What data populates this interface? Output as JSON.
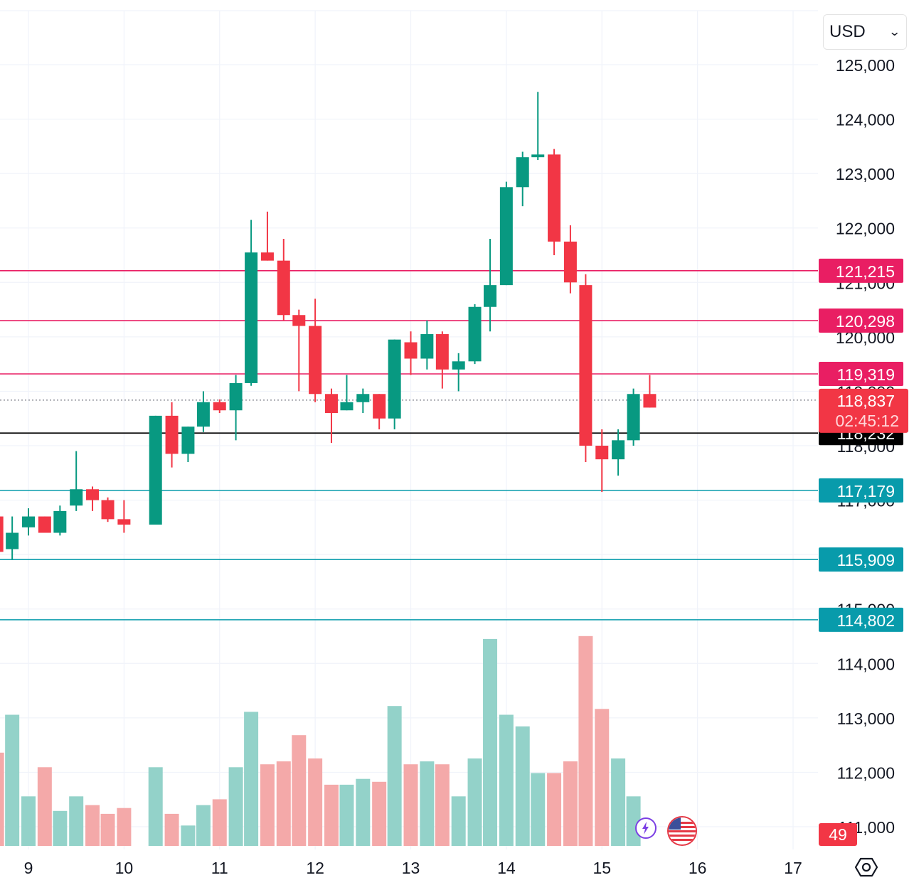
{
  "currency_select": {
    "value": "USD"
  },
  "chart_data": {
    "type": "candlestick",
    "interval": "12h",
    "x_ticks": [
      "9",
      "10",
      "11",
      "12",
      "13",
      "14",
      "15",
      "16",
      "17"
    ],
    "y_ticks": [
      "125,000",
      "124,000",
      "123,000",
      "122,000",
      "121,000",
      "120,000",
      "119,000",
      "118,000",
      "117,000",
      "116,000",
      "115,000",
      "114,000",
      "113,000",
      "112,000",
      "111,000"
    ],
    "ylim": [
      110700,
      126000
    ],
    "candles": [
      {
        "day": 8.5,
        "o": 116900,
        "h": 117000,
        "l": 116300,
        "c": 116950
      },
      {
        "day": 8.67,
        "o": 116700,
        "h": 117150,
        "l": 115900,
        "c": 116050
      },
      {
        "day": 8.83,
        "o": 116100,
        "h": 116700,
        "l": 115900,
        "c": 116400
      },
      {
        "day": 9.0,
        "o": 116500,
        "h": 116850,
        "l": 116350,
        "c": 116700
      },
      {
        "day": 9.17,
        "o": 116700,
        "h": 116700,
        "l": 116400,
        "c": 116400
      },
      {
        "day": 9.33,
        "o": 116400,
        "h": 116900,
        "l": 116350,
        "c": 116800
      },
      {
        "day": 9.5,
        "o": 116900,
        "h": 117900,
        "l": 116800,
        "c": 117200
      },
      {
        "day": 9.67,
        "o": 117200,
        "h": 117250,
        "l": 116800,
        "c": 117000
      },
      {
        "day": 9.83,
        "o": 117000,
        "h": 117050,
        "l": 116600,
        "c": 116650
      },
      {
        "day": 10.0,
        "o": 116650,
        "h": 117000,
        "l": 116400,
        "c": 116550
      },
      {
        "day": 10.33,
        "o": 116550,
        "h": 118550,
        "l": 116550,
        "c": 118550
      },
      {
        "day": 10.5,
        "o": 118550,
        "h": 118800,
        "l": 117600,
        "c": 117850
      },
      {
        "day": 10.67,
        "o": 117850,
        "h": 118350,
        "l": 117700,
        "c": 118350
      },
      {
        "day": 10.83,
        "o": 118350,
        "h": 119000,
        "l": 118250,
        "c": 118800
      },
      {
        "day": 11.0,
        "o": 118800,
        "h": 118850,
        "l": 118600,
        "c": 118650
      },
      {
        "day": 11.17,
        "o": 118650,
        "h": 119300,
        "l": 118100,
        "c": 119150
      },
      {
        "day": 11.33,
        "o": 119150,
        "h": 122150,
        "l": 119100,
        "c": 121550
      },
      {
        "day": 11.5,
        "o": 121550,
        "h": 122300,
        "l": 121400,
        "c": 121400
      },
      {
        "day": 11.67,
        "o": 121400,
        "h": 121800,
        "l": 120300,
        "c": 120400
      },
      {
        "day": 11.83,
        "o": 120400,
        "h": 120500,
        "l": 119000,
        "c": 120200
      },
      {
        "day": 12.0,
        "o": 120200,
        "h": 120700,
        "l": 118800,
        "c": 118950
      },
      {
        "day": 12.17,
        "o": 118950,
        "h": 119050,
        "l": 118050,
        "c": 118600
      },
      {
        "day": 12.33,
        "o": 118650,
        "h": 119300,
        "l": 118650,
        "c": 118800
      },
      {
        "day": 12.5,
        "o": 118800,
        "h": 119050,
        "l": 118600,
        "c": 118950
      },
      {
        "day": 12.67,
        "o": 118950,
        "h": 118950,
        "l": 118300,
        "c": 118500
      },
      {
        "day": 12.83,
        "o": 118500,
        "h": 119950,
        "l": 118300,
        "c": 119950
      },
      {
        "day": 13.0,
        "o": 119900,
        "h": 120100,
        "l": 119300,
        "c": 119600
      },
      {
        "day": 13.17,
        "o": 119600,
        "h": 120300,
        "l": 119400,
        "c": 120050
      },
      {
        "day": 13.33,
        "o": 120050,
        "h": 120100,
        "l": 119050,
        "c": 119400
      },
      {
        "day": 13.5,
        "o": 119400,
        "h": 119700,
        "l": 119000,
        "c": 119550
      },
      {
        "day": 13.67,
        "o": 119550,
        "h": 120600,
        "l": 119500,
        "c": 120550
      },
      {
        "day": 13.83,
        "o": 120550,
        "h": 121800,
        "l": 120100,
        "c": 120950
      },
      {
        "day": 14.0,
        "o": 120950,
        "h": 122850,
        "l": 120950,
        "c": 122750
      },
      {
        "day": 14.17,
        "o": 122750,
        "h": 123400,
        "l": 122400,
        "c": 123300
      },
      {
        "day": 14.33,
        "o": 123300,
        "h": 124500,
        "l": 123250,
        "c": 123350
      },
      {
        "day": 14.5,
        "o": 123350,
        "h": 123450,
        "l": 121500,
        "c": 121750
      },
      {
        "day": 14.67,
        "o": 121750,
        "h": 122050,
        "l": 120800,
        "c": 121000
      },
      {
        "day": 14.83,
        "o": 120950,
        "h": 121150,
        "l": 117700,
        "c": 118000
      },
      {
        "day": 15.0,
        "o": 118000,
        "h": 118300,
        "l": 117150,
        "c": 117750
      },
      {
        "day": 15.17,
        "o": 117750,
        "h": 118300,
        "l": 117450,
        "c": 118100
      },
      {
        "day": 15.33,
        "o": 118100,
        "h": 119050,
        "l": 118000,
        "c": 118950
      },
      {
        "day": 15.5,
        "o": 118950,
        "h": 119300,
        "l": 118700,
        "c": 118700
      }
    ],
    "volume_ratio": [
      0.12,
      0.32,
      0.45,
      0.17,
      0.27,
      0.12,
      0.17,
      0.14,
      0.11,
      0.13,
      0.27,
      0.11,
      0.07,
      0.14,
      0.16,
      0.27,
      0.46,
      0.28,
      0.29,
      0.38,
      0.3,
      0.21,
      0.21,
      0.23,
      0.22,
      0.48,
      0.28,
      0.29,
      0.28,
      0.17,
      0.3,
      0.71,
      0.45,
      0.41,
      0.25,
      0.25,
      0.29,
      0.72,
      0.47,
      0.3,
      0.17,
      0.0
    ],
    "levels": [
      {
        "label": "121,215",
        "value": 121215,
        "color": "#e91e63"
      },
      {
        "label": "120,298",
        "value": 120298,
        "color": "#e91e63"
      },
      {
        "label": "119,319",
        "value": 119319,
        "color": "#e91e63"
      },
      {
        "label": "117,179",
        "value": 117179,
        "color": "#089bab"
      },
      {
        "label": "115,909",
        "value": 115909,
        "color": "#089bab"
      },
      {
        "label": "114,802",
        "value": 114802,
        "color": "#089bab"
      }
    ],
    "black_line": {
      "label": "118,232",
      "value": 118232,
      "color": "#000000"
    },
    "last_price": {
      "label": "118,837",
      "value": 118837,
      "countdown": "02:45:12",
      "color": "#f23645"
    },
    "volume_badge": {
      "label": "49",
      "color": "#f23645"
    },
    "up_color": "#089981",
    "down_color": "#f23645",
    "volume_up_color": "#93d2c9",
    "volume_down_color": "#f4a9a9"
  }
}
